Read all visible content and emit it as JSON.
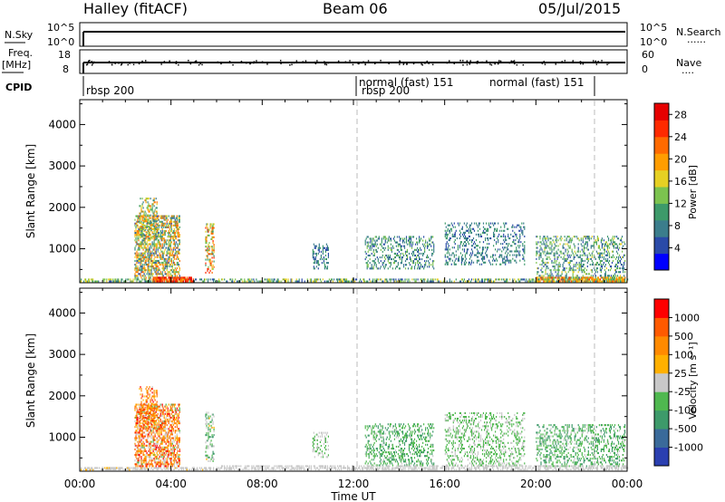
{
  "header": {
    "station": "Halley (fitACF)",
    "beam": "Beam 06",
    "date": "05/Jul/2015"
  },
  "top_panels": {
    "nsky_label": "N.Sky",
    "nsky_ticks": [
      "10^5",
      "10^0"
    ],
    "nsearch_label": "N.Search",
    "nsearch_ticks": [
      "10^5",
      "10^0"
    ],
    "freq_label_1": "Freq.",
    "freq_label_2": "[MHz]",
    "freq_ticks": [
      "18",
      "8"
    ],
    "nave_label": "Nave",
    "nave_ticks": [
      "60",
      "0"
    ],
    "cpid_label": "CPID",
    "cpid_entries": [
      {
        "text": "rbsp 200",
        "start_hour": 0.0
      },
      {
        "text": "normal (fast) 151",
        "start_hour": 12.0
      },
      {
        "text": "rbsp 200",
        "start_hour": 12.0
      },
      {
        "text": "normal (fast) 151",
        "start_hour": 22.5
      }
    ]
  },
  "axes": {
    "ylabel": "Slant Range [km]",
    "xlabel": "Time UT",
    "xticks": [
      "00:00",
      "04:00",
      "08:00",
      "12:00",
      "16:00",
      "20:00",
      "00:00"
    ],
    "yticks": [
      "1000",
      "2000",
      "3000",
      "4000"
    ]
  },
  "chart_data": [
    {
      "type": "heatmap",
      "panel": "power",
      "xlabel": "",
      "ylabel": "Slant Range [km]",
      "xlim": [
        0,
        24
      ],
      "ylim": [
        180,
        4600
      ],
      "colorbar": {
        "label": "Power [dB]",
        "ticks": [
          "28",
          "24",
          "20",
          "16",
          "12",
          "8",
          "4"
        ],
        "tick_values": [
          28,
          24,
          20,
          16,
          12,
          8,
          4
        ],
        "range": [
          0,
          30
        ],
        "colors": [
          "#0000ff",
          "#2a4aa8",
          "#3b7d8c",
          "#3d9a6a",
          "#7cc34f",
          "#e6d023",
          "#ff9d00",
          "#ff6a00",
          "#ff2a00",
          "#e60000"
        ]
      },
      "clusters": [
        {
          "t0": 0.0,
          "t1": 24.0,
          "r0": 190,
          "r1": 280,
          "density": 0.5,
          "vmin": 4,
          "vmax": 18
        },
        {
          "t0": 2.4,
          "t1": 4.4,
          "r0": 280,
          "r1": 1800,
          "density": 0.55,
          "vmin": 4,
          "vmax": 24
        },
        {
          "t0": 2.6,
          "t1": 3.4,
          "r0": 1200,
          "r1": 2200,
          "density": 0.35,
          "vmin": 6,
          "vmax": 22
        },
        {
          "t0": 3.2,
          "t1": 5.0,
          "r0": 190,
          "r1": 320,
          "density": 0.8,
          "vmin": 20,
          "vmax": 30
        },
        {
          "t0": 5.5,
          "t1": 5.9,
          "r0": 400,
          "r1": 1600,
          "density": 0.4,
          "vmin": 8,
          "vmax": 26
        },
        {
          "t0": 10.2,
          "t1": 10.9,
          "r0": 500,
          "r1": 1100,
          "density": 0.3,
          "vmin": 4,
          "vmax": 12
        },
        {
          "t0": 12.5,
          "t1": 15.5,
          "r0": 500,
          "r1": 1300,
          "density": 0.3,
          "vmin": 4,
          "vmax": 14
        },
        {
          "t0": 16.0,
          "t1": 19.5,
          "r0": 600,
          "r1": 1600,
          "density": 0.25,
          "vmin": 4,
          "vmax": 12
        },
        {
          "t0": 20.0,
          "t1": 23.9,
          "r0": 280,
          "r1": 1300,
          "density": 0.3,
          "vmin": 4,
          "vmax": 16
        },
        {
          "t0": 20.0,
          "t1": 23.9,
          "r0": 190,
          "r1": 320,
          "density": 0.7,
          "vmin": 10,
          "vmax": 26
        }
      ]
    },
    {
      "type": "heatmap",
      "panel": "velocity",
      "xlabel": "Time UT",
      "ylabel": "Slant Range [km]",
      "xlim": [
        0,
        24
      ],
      "ylim": [
        180,
        4600
      ],
      "colorbar": {
        "label": "Velocity [m s⁻¹]",
        "ticks": [
          "1000",
          "500",
          "100",
          "25",
          "-25",
          "-100",
          "-500",
          "-1000"
        ],
        "tick_values": [
          1000,
          500,
          100,
          25,
          -25,
          -100,
          -500,
          -1000
        ],
        "range": [
          -1200,
          1200
        ],
        "colors": [
          "#2a3fb0",
          "#3a6a9a",
          "#3d9a6a",
          "#4fb84f",
          "#c8c8c8",
          "#ffb000",
          "#ff8a00",
          "#ff5a00",
          "#ff0000"
        ]
      },
      "clusters": [
        {
          "t0": 0.0,
          "t1": 6.0,
          "r0": 190,
          "r1": 280,
          "density": 0.6,
          "vmin": 25,
          "vmax": 150
        },
        {
          "t0": 2.4,
          "t1": 4.4,
          "r0": 280,
          "r1": 1800,
          "density": 0.55,
          "vmin": -200,
          "vmax": 1100
        },
        {
          "t0": 2.6,
          "t1": 3.4,
          "r0": 1200,
          "r1": 2200,
          "density": 0.35,
          "vmin": 100,
          "vmax": 1000
        },
        {
          "t0": 5.5,
          "t1": 5.9,
          "r0": 400,
          "r1": 1600,
          "density": 0.35,
          "vmin": -600,
          "vmax": 200
        },
        {
          "t0": 10.2,
          "t1": 10.9,
          "r0": 500,
          "r1": 1100,
          "density": 0.3,
          "vmin": -200,
          "vmax": -60
        },
        {
          "t0": 12.5,
          "t1": 15.5,
          "r0": 300,
          "r1": 1300,
          "density": 0.3,
          "vmin": -600,
          "vmax": -80
        },
        {
          "t0": 16.0,
          "t1": 19.5,
          "r0": 300,
          "r1": 1600,
          "density": 0.28,
          "vmin": -400,
          "vmax": 30
        },
        {
          "t0": 20.0,
          "t1": 23.9,
          "r0": 280,
          "r1": 1300,
          "density": 0.3,
          "vmin": -600,
          "vmax": -60
        },
        {
          "t0": 6.0,
          "t1": 24.0,
          "r0": 190,
          "r1": 300,
          "density": 0.5,
          "vmin": -120,
          "vmax": 120
        }
      ]
    }
  ]
}
